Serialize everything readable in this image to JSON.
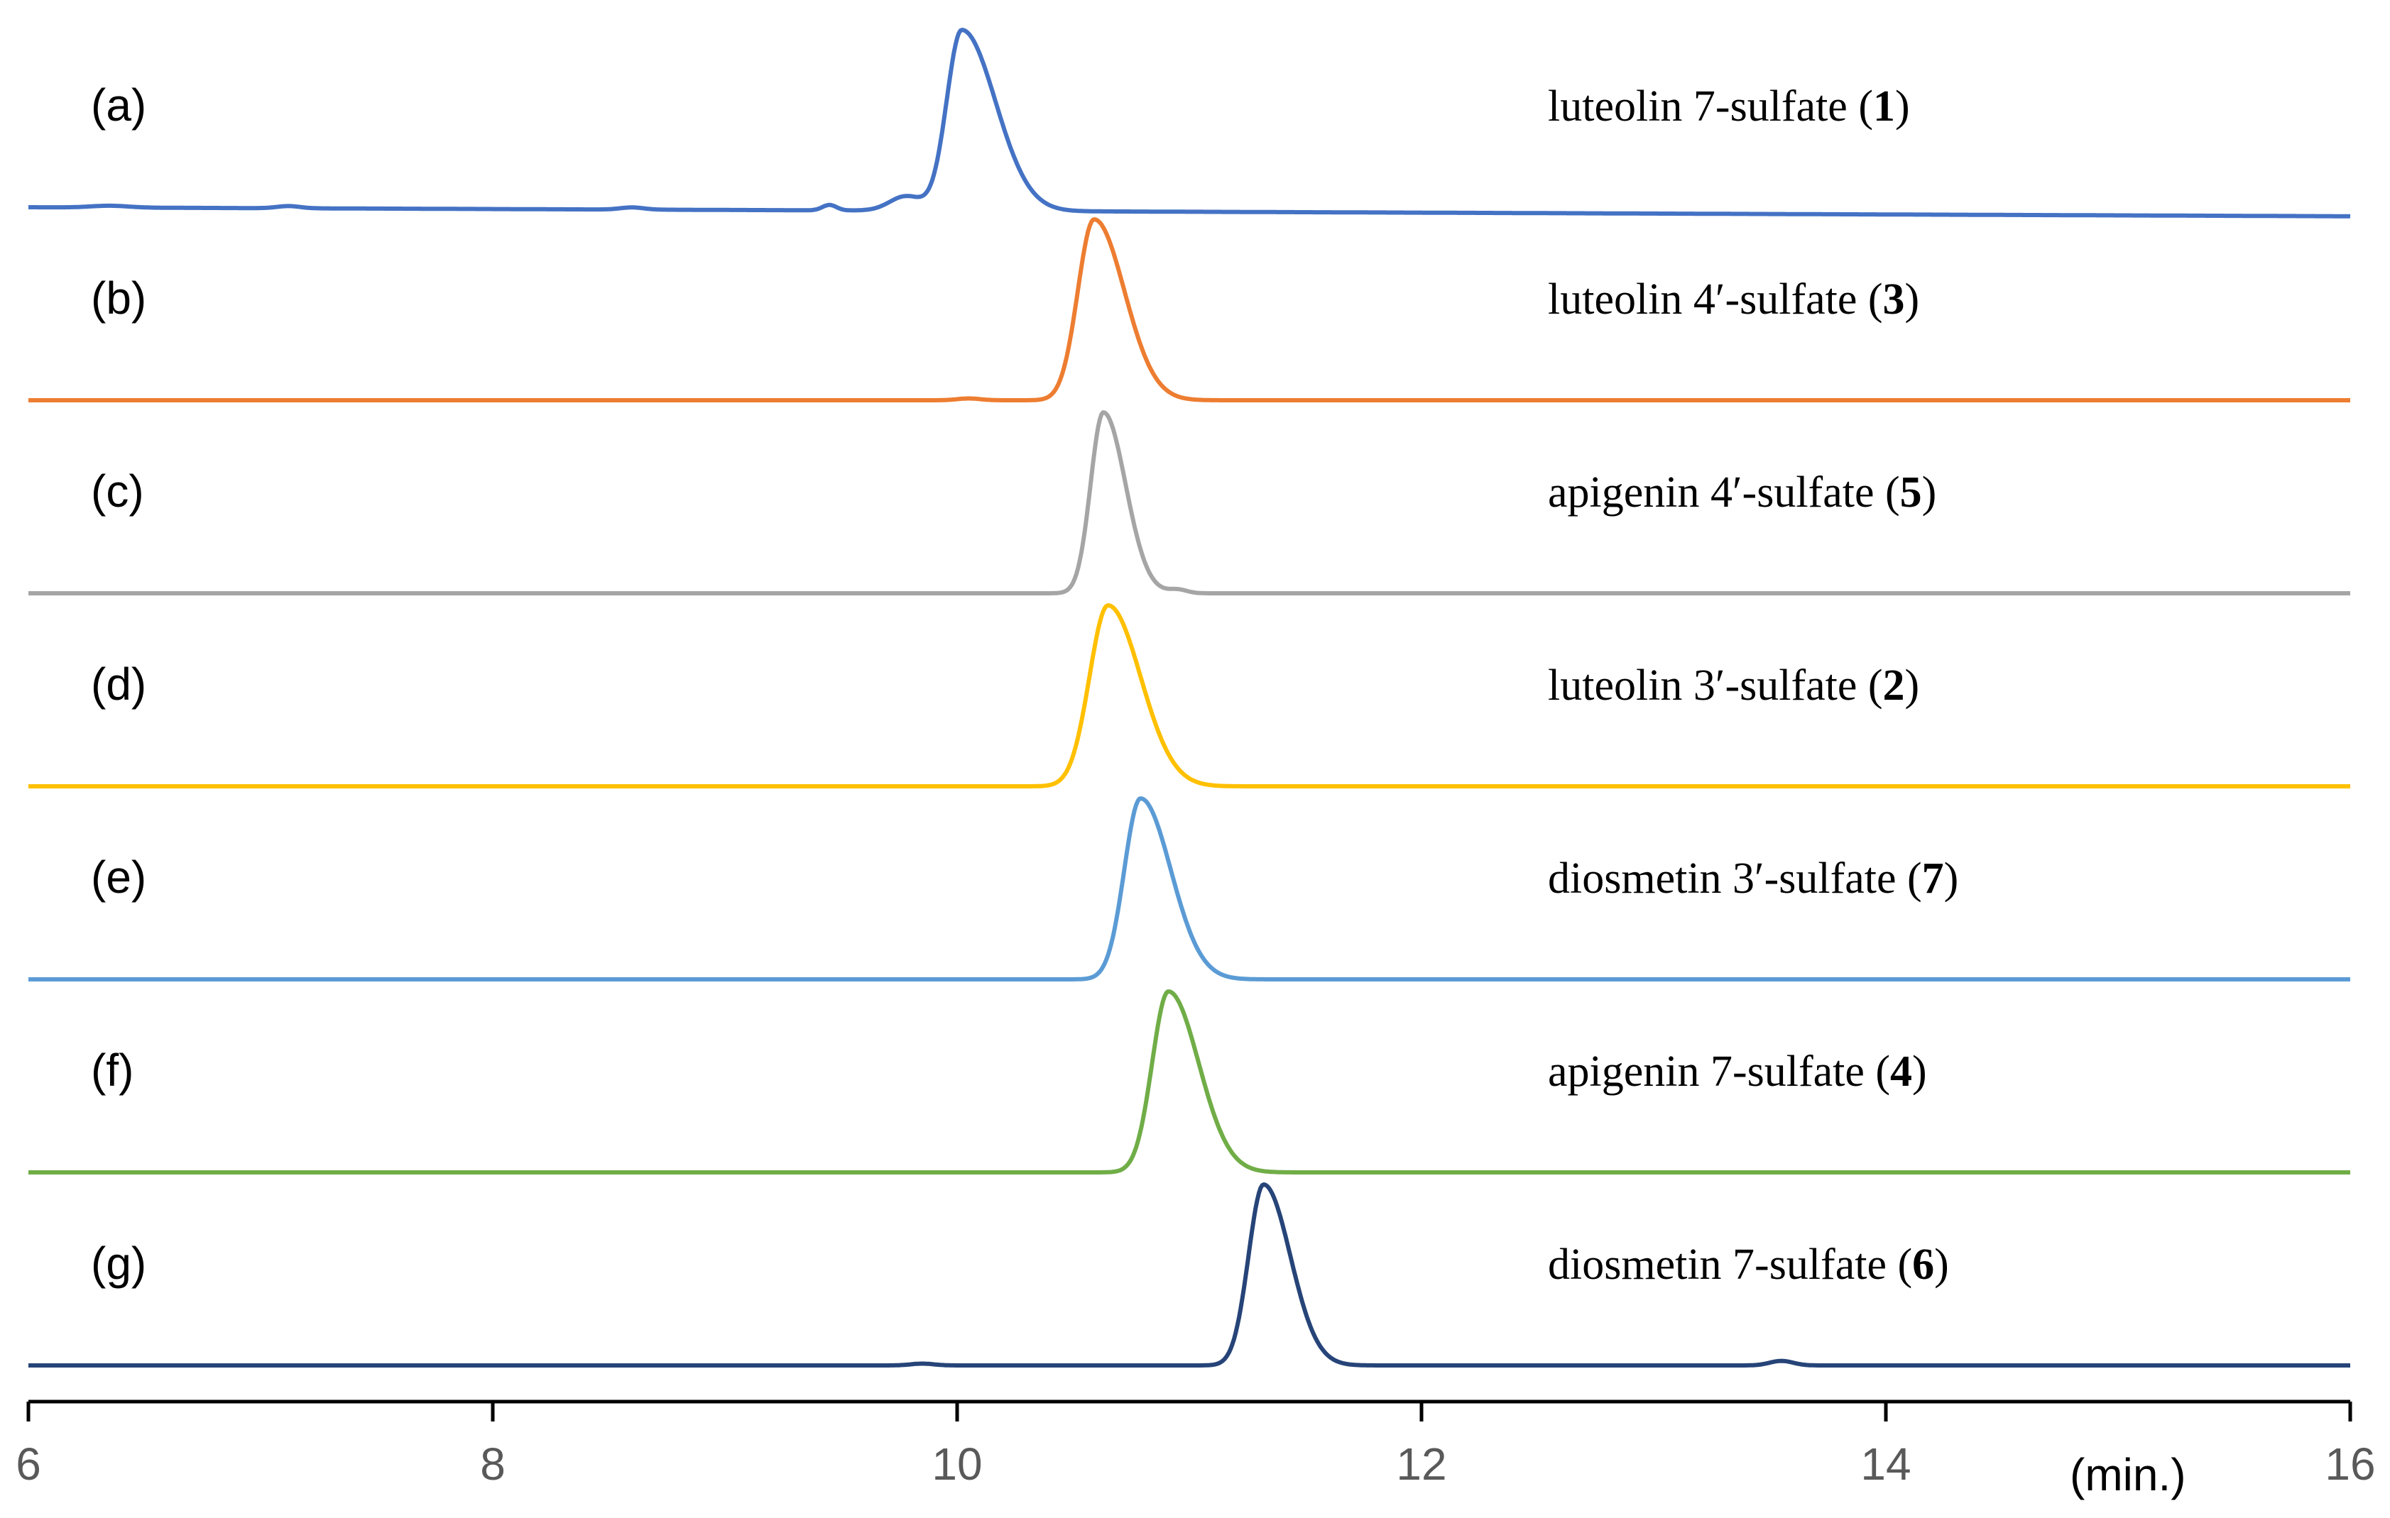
{
  "chart_data": {
    "type": "line",
    "title": "",
    "xlabel": "(min.)",
    "ylabel": "",
    "xlim": [
      6,
      16
    ],
    "xticks": [
      6,
      8,
      10,
      12,
      14,
      16
    ],
    "grid": false,
    "legend": "none",
    "series": [
      {
        "id": "a",
        "panel": "(a)",
        "compound": "luteolin 7-sulfate (",
        "number": "1",
        "close": ")",
        "color": "#4472C4",
        "peak_rt": 10.02,
        "peak_width": 0.065,
        "tail": 0.08,
        "baseline_drift": 0.05,
        "minor_peaks": [
          [
            9.45,
            0.03,
            0.03
          ],
          [
            9.78,
            0.08,
            0.07
          ],
          [
            7.12,
            0.012,
            0.05
          ],
          [
            8.6,
            0.012,
            0.05
          ],
          [
            6.35,
            0.01,
            0.08
          ]
        ]
      },
      {
        "id": "b",
        "panel": "(b)",
        "compound": "luteolin 4′-sulfate (",
        "number": "3",
        "close": ")",
        "color": "#ED7D31",
        "peak_rt": 10.59,
        "peak_width": 0.07,
        "tail": 0.06,
        "baseline_drift": 0,
        "minor_peaks": [
          [
            10.05,
            0.01,
            0.05
          ]
        ]
      },
      {
        "id": "c",
        "panel": "(c)",
        "compound": "apigenin 4′-sulfate (",
        "number": "5",
        "close": ")",
        "color": "#A5A5A5",
        "peak_rt": 10.63,
        "peak_width": 0.055,
        "tail": 0.04,
        "baseline_drift": 0,
        "minor_peaks": [
          [
            10.95,
            0.02,
            0.04
          ]
        ]
      },
      {
        "id": "d",
        "panel": "(d)",
        "compound": "luteolin 3′-sulfate (",
        "number": "2",
        "close": ")",
        "color": "#FFC000",
        "peak_rt": 10.65,
        "peak_width": 0.08,
        "tail": 0.06,
        "baseline_drift": 0,
        "minor_peaks": []
      },
      {
        "id": "e",
        "panel": "(e)",
        "compound": "diosmetin 3′-sulfate (",
        "number": "7",
        "close": ")",
        "color": "#5B9BD5",
        "peak_rt": 10.79,
        "peak_width": 0.07,
        "tail": 0.06,
        "baseline_drift": 0,
        "minor_peaks": []
      },
      {
        "id": "f",
        "panel": "(f)",
        "compound": "apigenin 7-sulfate (",
        "number": "4",
        "close": ")",
        "color": "#70AD47",
        "peak_rt": 10.91,
        "peak_width": 0.07,
        "tail": 0.06,
        "baseline_drift": 0,
        "minor_peaks": []
      },
      {
        "id": "g",
        "panel": "(g)",
        "compound": "diosmetin 7-sulfate (",
        "number": "6",
        "close": ")",
        "color": "#264478",
        "peak_rt": 11.32,
        "peak_width": 0.065,
        "tail": 0.05,
        "baseline_drift": 0,
        "minor_peaks": [
          [
            13.55,
            0.025,
            0.05
          ],
          [
            9.85,
            0.01,
            0.05
          ]
        ]
      }
    ]
  }
}
